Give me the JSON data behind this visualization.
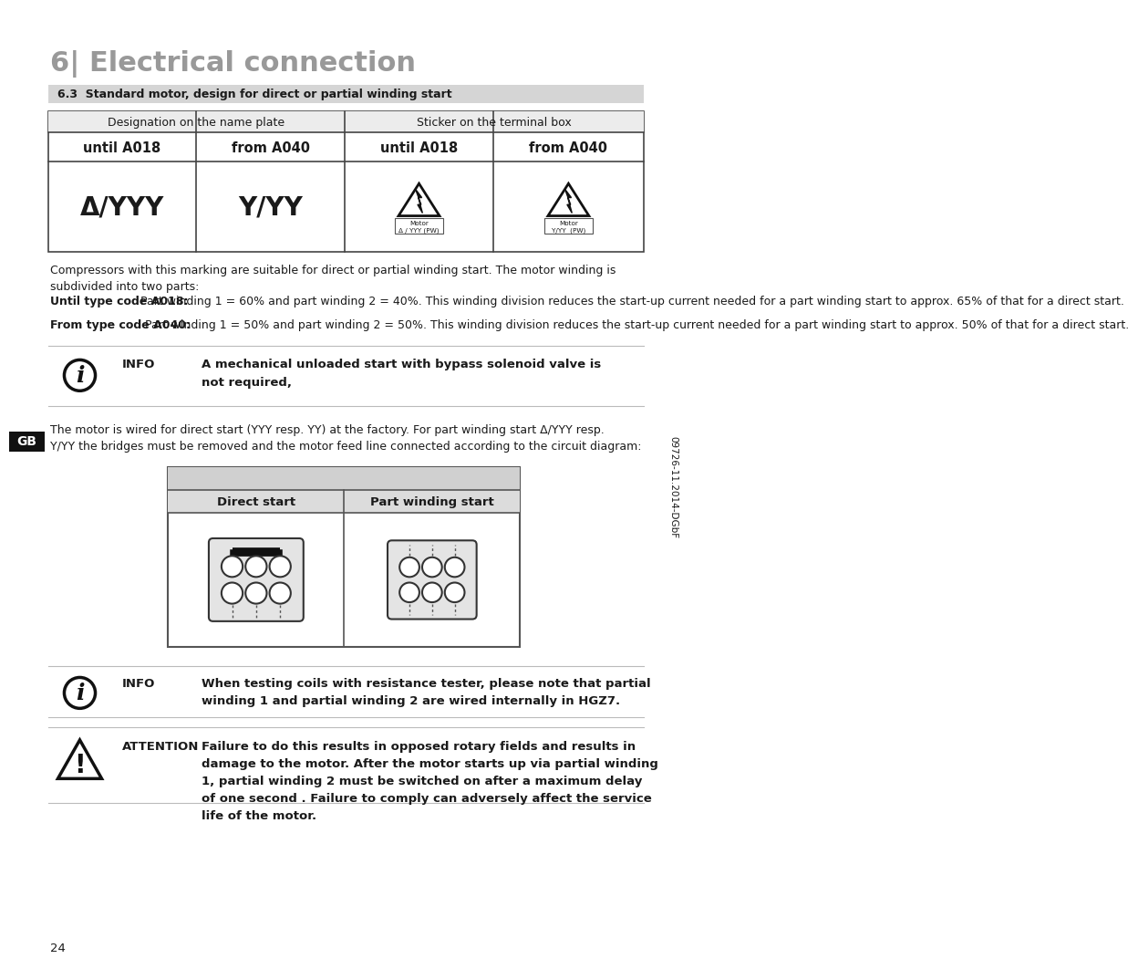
{
  "title": "6| Electrical connection",
  "section_title": "6.3  Standard motor, design for direct or partial winding start",
  "bg_color": "#ffffff",
  "text_color": "#1a1a1a",
  "col1_label": "Designation on the name plate",
  "col2_label": "Sticker on the terminal box",
  "until_a018": "until A018",
  "from_a040": "from A040",
  "symbol_left": "Δ/YYY",
  "symbol_right": "Y/YY",
  "sticker1_label": "Δ / YYY (PW)",
  "sticker2_label": "Y/YY  (PW)",
  "para1": "Compressors with this marking are suitable for direct or partial winding start. The motor winding is\nsubdivided into two parts:",
  "para2_bold": "Until type code A018:",
  "para2_rest": " Part winding 1 = 60% and part winding 2 = 40%. This winding division reduces the start-up current needed for a part winding start to approx. 65% of that for a direct start.",
  "para3_bold": "From type code A040:",
  "para3_rest": " Part winding 1 = 50% and part winding 2 = 50%. This winding division reduces the start-up current needed for a part winding start to approx. 50% of that for a direct start.",
  "info1_label": "INFO",
  "info1_text": "A mechanical unloaded start with bypass solenoid valve is\nnot required,",
  "motor_text": "The motor is wired for direct start (YYY resp. YY) at the factory. For part winding start Δ/YYY resp.\nY/YY the bridges must be removed and the motor feed line connected according to the circuit diagram:",
  "direct_start_label": "Direct start",
  "part_winding_label": "Part winding start",
  "info2_label": "INFO",
  "info2_text": "When testing coils with resistance tester, please note that partial\nwinding 1 and partial winding 2 are wired internally in HGZ7.",
  "attention_label": "ATTENTION",
  "attention_text": "Failure to do this results in opposed rotary fields and results in\ndamage to the motor. After the motor starts up via partial winding\n1, partial winding 2 must be switched on after a maximum delay\nof one second . Failure to comply can adversely affect the service\nlife of the motor.",
  "gb_label": "GB",
  "page_number": "24",
  "footer_code": "09726-11.2014-DGbF"
}
